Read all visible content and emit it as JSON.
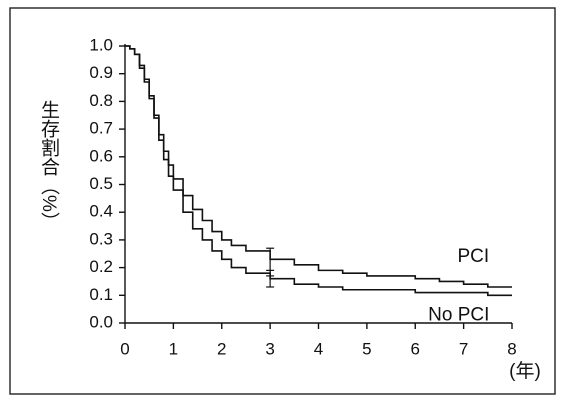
{
  "chart_data": {
    "type": "line",
    "step": true,
    "y_label": "生存割合（%）",
    "x_label": "(年)",
    "x": [
      0,
      0.1,
      0.2,
      0.3,
      0.4,
      0.5,
      0.6,
      0.7,
      0.8,
      0.9,
      1.0,
      1.2,
      1.4,
      1.6,
      1.8,
      2.0,
      2.2,
      2.5,
      3.0,
      3.5,
      4,
      4.5,
      5,
      5.5,
      6,
      6.5,
      7,
      7.5,
      8
    ],
    "series": [
      {
        "name": "PCI",
        "color": "#111111",
        "values": [
          1.0,
          0.99,
          0.97,
          0.93,
          0.88,
          0.82,
          0.75,
          0.68,
          0.62,
          0.57,
          0.52,
          0.46,
          0.41,
          0.37,
          0.33,
          0.3,
          0.28,
          0.26,
          0.23,
          0.21,
          0.19,
          0.18,
          0.17,
          0.17,
          0.16,
          0.15,
          0.14,
          0.13,
          0.13
        ],
        "error_bar": {
          "x": 3,
          "value": 0.22,
          "error": 0.05
        }
      },
      {
        "name": "No PCI",
        "color": "#111111",
        "values": [
          1.0,
          0.99,
          0.97,
          0.92,
          0.87,
          0.81,
          0.74,
          0.66,
          0.59,
          0.53,
          0.48,
          0.4,
          0.34,
          0.3,
          0.26,
          0.23,
          0.2,
          0.18,
          0.16,
          0.14,
          0.13,
          0.12,
          0.12,
          0.12,
          0.11,
          0.11,
          0.11,
          0.1,
          0.1
        ],
        "error_bar": {
          "x": 3,
          "value": 0.16,
          "error": 0.03
        }
      }
    ],
    "xlim": [
      0,
      8
    ],
    "xticks": [
      0,
      1,
      2,
      3,
      4,
      5,
      6,
      7,
      8
    ],
    "ylim": [
      0,
      1
    ],
    "yticks": [
      {
        "value": 0,
        "label": "0.0"
      },
      0.1,
      0.2,
      0.3,
      0.4,
      0.5,
      0.6,
      0.7,
      0.8,
      0.9,
      {
        "value": 1,
        "label": "1.0"
      }
    ],
    "grid": false
  }
}
